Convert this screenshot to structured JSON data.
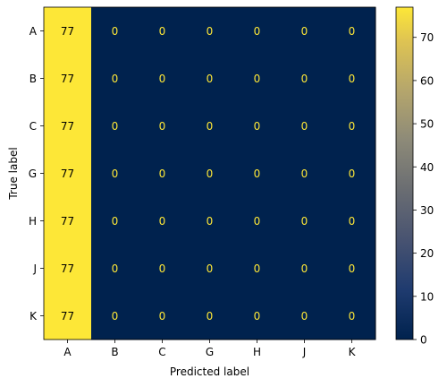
{
  "chart_data": {
    "type": "heatmap",
    "title": "",
    "xlabel": "Predicted label",
    "ylabel": "True label",
    "x_categories": [
      "A",
      "B",
      "C",
      "G",
      "H",
      "J",
      "K"
    ],
    "y_categories": [
      "A",
      "B",
      "C",
      "G",
      "H",
      "J",
      "K"
    ],
    "values": [
      [
        77,
        0,
        0,
        0,
        0,
        0,
        0
      ],
      [
        77,
        0,
        0,
        0,
        0,
        0,
        0
      ],
      [
        77,
        0,
        0,
        0,
        0,
        0,
        0
      ],
      [
        77,
        0,
        0,
        0,
        0,
        0,
        0
      ],
      [
        77,
        0,
        0,
        0,
        0,
        0,
        0
      ],
      [
        77,
        0,
        0,
        0,
        0,
        0,
        0
      ],
      [
        77,
        0,
        0,
        0,
        0,
        0,
        0
      ]
    ],
    "colormap": "cividis",
    "colors": {
      "high": "#fde737",
      "low": "#00224e",
      "text_on_low": "#fde737",
      "text_on_high": "#000000"
    },
    "colorbar": {
      "range": [
        0,
        77
      ],
      "ticks": [
        0,
        10,
        20,
        30,
        40,
        50,
        60,
        70
      ]
    },
    "grid": false,
    "legend": "colorbar-right"
  }
}
